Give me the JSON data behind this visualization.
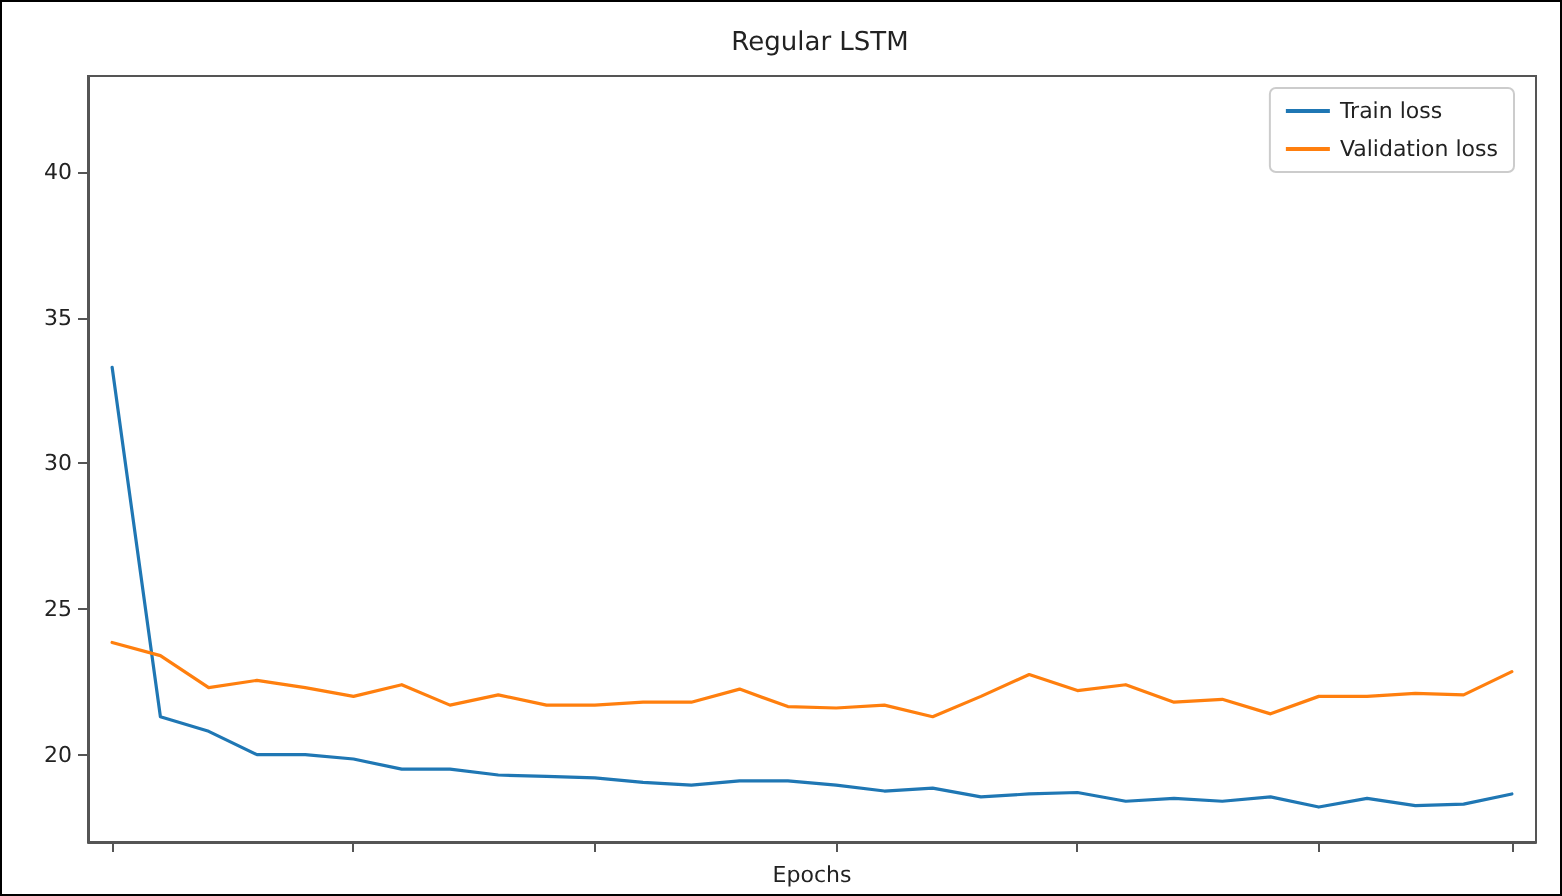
{
  "chart_data": {
    "type": "line",
    "title": "Regular LSTM",
    "xlabel": "Epochs",
    "categories": [
      null,
      null,
      null,
      null,
      null,
      null,
      null,
      null,
      null,
      null,
      null,
      null,
      null,
      null,
      null,
      null,
      null,
      null,
      null,
      null,
      null,
      null,
      null,
      null,
      null,
      null,
      null,
      null,
      null,
      null
    ],
    "series": [
      {
        "name": "Train loss",
        "color": "#1f77b4",
        "values": [
          33.3,
          21.3,
          20.8,
          20.0,
          20.0,
          19.85,
          19.5,
          19.5,
          19.3,
          19.25,
          19.2,
          19.05,
          18.95,
          19.1,
          19.1,
          18.95,
          18.75,
          18.85,
          18.55,
          18.65,
          18.7,
          18.4,
          18.5,
          18.4,
          18.55,
          18.2,
          18.5,
          18.25,
          18.3,
          18.65
        ]
      },
      {
        "name": "Validation loss",
        "color": "#ff7f0e",
        "values": [
          23.85,
          23.4,
          22.3,
          22.55,
          22.3,
          22.0,
          22.4,
          21.7,
          22.05,
          21.7,
          21.7,
          21.8,
          21.8,
          22.25,
          21.65,
          21.6,
          21.7,
          21.3,
          22.0,
          22.75,
          22.2,
          22.4,
          21.8,
          21.9,
          21.4,
          22.0,
          22.0,
          22.1,
          22.05,
          22.85
        ]
      }
    ],
    "ylim": [
      17,
      43.3
    ],
    "yticks": [
      20,
      25,
      30,
      35,
      40
    ],
    "tick_labels": "y",
    "legend": "top right",
    "grid": false,
    "marker": "none",
    "line_style": "solid"
  }
}
